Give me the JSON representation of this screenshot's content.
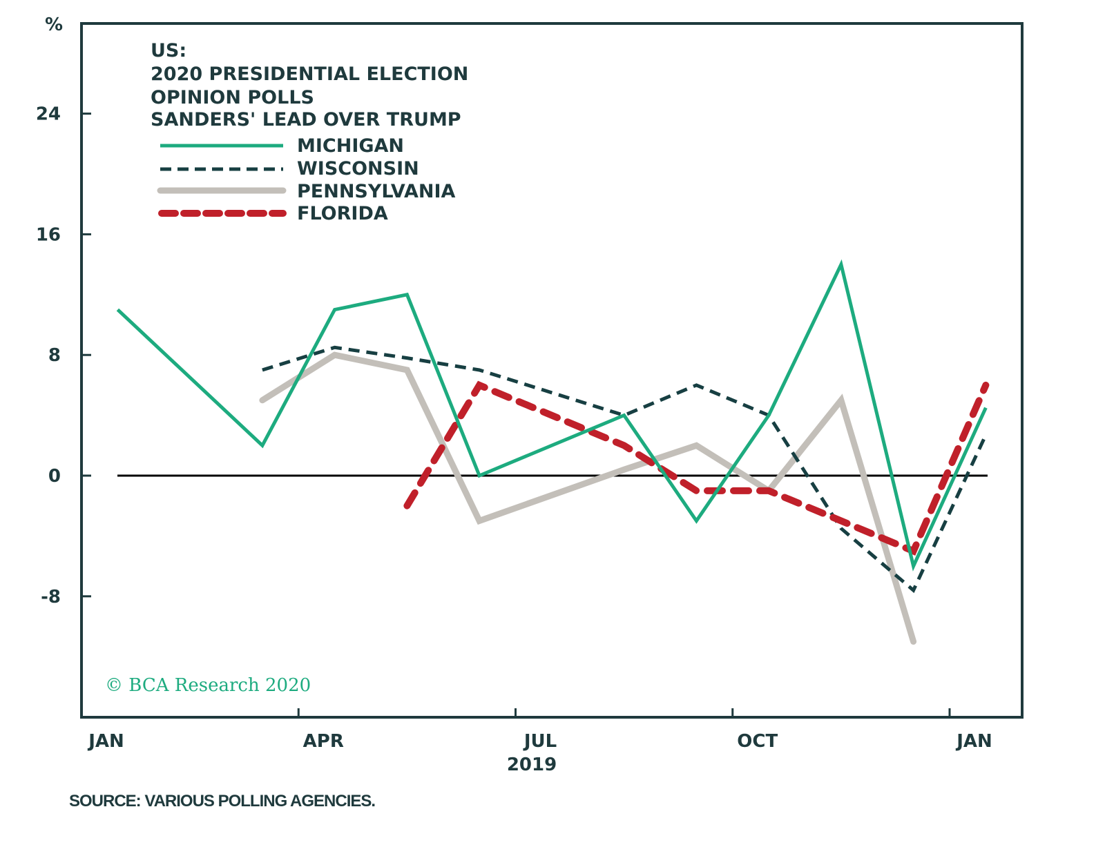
{
  "chart_data": {
    "type": "line",
    "title_lines": [
      "US:",
      "2020 PRESIDENTIAL ELECTION",
      "OPINION POLLS",
      "SANDERS' LEAD OVER TRUMP"
    ],
    "ylabel": "%",
    "xlabel": "2019",
    "ylim": [
      -16,
      30
    ],
    "yticks": [
      24,
      16,
      8,
      0,
      -8
    ],
    "ytick_labels": [
      "24",
      "16",
      "8",
      "0",
      "-8"
    ],
    "xlim_months": [
      0,
      13.2
    ],
    "xticks_months": [
      0,
      3,
      6,
      9,
      12
    ],
    "xtick_labels": [
      "JAN",
      "APR",
      "JUL",
      "OCT",
      "JAN"
    ],
    "zero_line": true,
    "grid": false,
    "legend_position": "top-left",
    "series": [
      {
        "name": "MICHIGAN",
        "color": "#1dab7f",
        "style": "solid",
        "x_months": [
          0.5,
          2.5,
          3.5,
          4.5,
          5.5,
          7.5,
          8.5,
          9.5,
          10.5,
          11.5,
          12.5
        ],
        "values": [
          11,
          2,
          11,
          12,
          0,
          4,
          -3,
          4,
          14,
          -6,
          4.5
        ]
      },
      {
        "name": "WISCONSIN",
        "color": "#173f42",
        "style": "dashed",
        "x_months": [
          2.5,
          3.5,
          4.5,
          5.5,
          7.5,
          8.5,
          9.5,
          10.5,
          11.5,
          12.5
        ],
        "values": [
          7,
          8.5,
          7.8,
          7,
          4,
          6,
          4,
          -3.5,
          -7.6,
          2.7
        ]
      },
      {
        "name": "PENNSYLVANIA",
        "color": "#c3bfb9",
        "style": "solid-thick",
        "x_months": [
          2.5,
          3.5,
          4.5,
          5.5,
          7.5,
          8.5,
          9.5,
          10.5,
          11.5
        ],
        "values": [
          5,
          8,
          7,
          -3,
          0.4,
          2,
          -1,
          5,
          -11
        ]
      },
      {
        "name": "FLORIDA",
        "color": "#c0202a",
        "style": "dashed-thick",
        "x_months": [
          4.5,
          5.5,
          7.5,
          8.5,
          9.5,
          10.5,
          11.5,
          12.5
        ],
        "values": [
          -2,
          6,
          2,
          -1,
          -1,
          -3,
          -5,
          6
        ]
      }
    ],
    "annotations": {
      "copyright": "© BCA Research 2020",
      "source": "SOURCE: VARIOUS POLLING AGENCIES."
    }
  }
}
